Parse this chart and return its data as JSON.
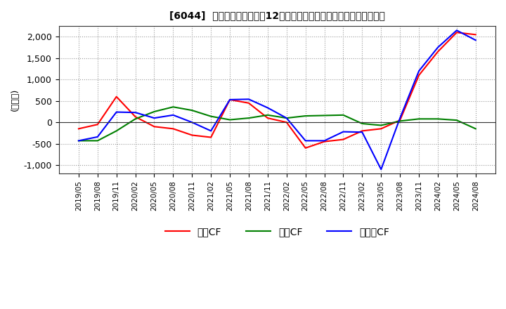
{
  "title": "[6044]  キャッシュフローの12か月移動合計の対前年同期増減額の推移",
  "ylabel": "(百万円)",
  "ylim": [
    -1200,
    2250
  ],
  "yticks": [
    -1000,
    -500,
    0,
    500,
    1000,
    1500,
    2000
  ],
  "legend_labels": [
    "営業CF",
    "投資CF",
    "フリーCF"
  ],
  "colors": {
    "eigyo": "#ff0000",
    "toshi": "#008000",
    "free": "#0000ff"
  },
  "dates": [
    "2019/05",
    "2019/08",
    "2019/11",
    "2020/02",
    "2020/05",
    "2020/08",
    "2020/11",
    "2021/02",
    "2021/05",
    "2021/08",
    "2021/11",
    "2022/02",
    "2022/05",
    "2022/08",
    "2022/11",
    "2023/02",
    "2023/05",
    "2023/08",
    "2023/11",
    "2024/02",
    "2024/05",
    "2024/08"
  ],
  "eigyo_cf": [
    -150,
    -50,
    600,
    130,
    -100,
    -150,
    -300,
    -350,
    530,
    450,
    100,
    0,
    -600,
    -450,
    -400,
    -200,
    -150,
    50,
    1100,
    1650,
    2100,
    2050
  ],
  "toshi_cf": [
    -430,
    -430,
    -200,
    80,
    250,
    360,
    280,
    140,
    60,
    100,
    170,
    100,
    150,
    160,
    170,
    -30,
    -70,
    30,
    80,
    80,
    50,
    -150
  ],
  "free_cf": [
    -430,
    -340,
    240,
    230,
    100,
    170,
    0,
    -200,
    530,
    540,
    340,
    100,
    -430,
    -430,
    -220,
    -230,
    -1100,
    100,
    1200,
    1750,
    2150,
    1920
  ]
}
